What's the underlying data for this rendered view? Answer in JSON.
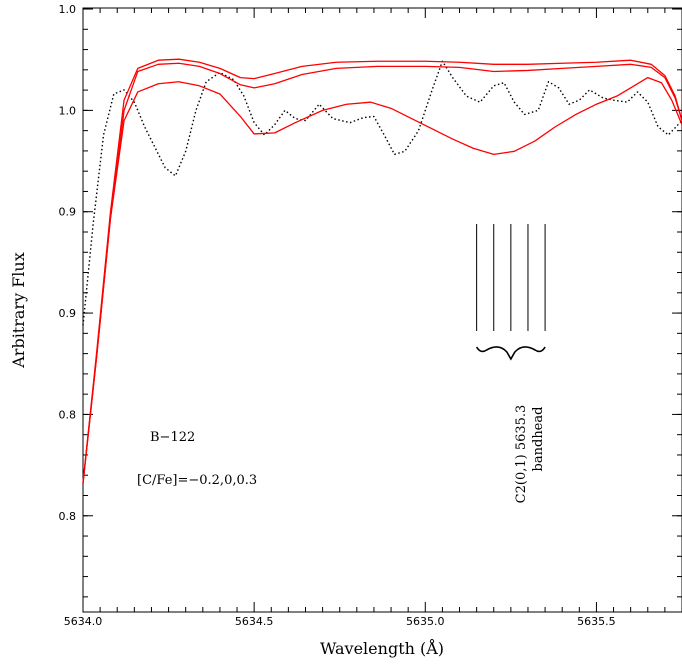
{
  "chart_data": {
    "type": "line",
    "title": "",
    "xlabel": "Wavelength (Å)",
    "ylabel": "Arbitrary Flux",
    "xlim": [
      5634.0,
      5635.75
    ],
    "ylim": [
      0.745,
      1.04
    ],
    "x_ticks": [
      {
        "value": 5634.0,
        "label": "5634.0"
      },
      {
        "value": 5634.5,
        "label": "5634.5"
      },
      {
        "value": 5635.0,
        "label": "5635.0"
      },
      {
        "value": 5635.5,
        "label": "5635.5"
      }
    ],
    "y_ticks": [
      {
        "value": 1.0395,
        "label": "1.0"
      },
      {
        "value": 0.99,
        "label": "1.0"
      },
      {
        "value": 0.9405,
        "label": "0.9"
      },
      {
        "value": 0.891,
        "label": "0.9"
      },
      {
        "value": 0.8415,
        "label": "0.8"
      },
      {
        "value": 0.792,
        "label": "0.8"
      }
    ],
    "grid": false,
    "series": [
      {
        "style": "dotted",
        "color": "#000000",
        "points": [
          [
            5634.0,
            0.885
          ],
          [
            5634.03,
            0.935
          ],
          [
            5634.06,
            0.978
          ],
          [
            5634.09,
            0.998
          ],
          [
            5634.12,
            1.0
          ],
          [
            5634.15,
            0.994
          ],
          [
            5634.18,
            0.982
          ],
          [
            5634.21,
            0.972
          ],
          [
            5634.24,
            0.962
          ],
          [
            5634.27,
            0.958
          ],
          [
            5634.3,
            0.97
          ],
          [
            5634.33,
            0.99
          ],
          [
            5634.36,
            1.004
          ],
          [
            5634.4,
            1.0085
          ],
          [
            5634.44,
            1.005
          ],
          [
            5634.47,
            0.997
          ],
          [
            5634.5,
            0.984
          ],
          [
            5634.53,
            0.978
          ],
          [
            5634.56,
            0.983
          ],
          [
            5634.59,
            0.99
          ],
          [
            5634.62,
            0.986
          ],
          [
            5634.65,
            0.985
          ],
          [
            5634.69,
            0.993
          ],
          [
            5634.73,
            0.986
          ],
          [
            5634.78,
            0.984
          ],
          [
            5634.82,
            0.9865
          ],
          [
            5634.85,
            0.987
          ],
          [
            5634.88,
            0.978
          ],
          [
            5634.91,
            0.9685
          ],
          [
            5634.94,
            0.97
          ],
          [
            5634.98,
            0.98
          ],
          [
            5635.02,
            1.0
          ],
          [
            5635.05,
            1.014
          ],
          [
            5635.08,
            1.006
          ],
          [
            5635.12,
            0.997
          ],
          [
            5635.16,
            0.994
          ],
          [
            5635.2,
            1.002
          ],
          [
            5635.23,
            1.0035
          ],
          [
            5635.26,
            0.994
          ],
          [
            5635.29,
            0.988
          ],
          [
            5635.33,
            0.99
          ],
          [
            5635.36,
            1.004
          ],
          [
            5635.39,
            1.001
          ],
          [
            5635.42,
            0.993
          ],
          [
            5635.45,
            0.995
          ],
          [
            5635.48,
            1.0
          ],
          [
            5635.52,
            0.996
          ],
          [
            5635.55,
            0.995
          ],
          [
            5635.59,
            0.994
          ],
          [
            5635.62,
            0.999
          ],
          [
            5635.65,
            0.994
          ],
          [
            5635.68,
            0.982
          ],
          [
            5635.71,
            0.978
          ],
          [
            5635.75,
            0.985
          ]
        ]
      },
      {
        "style": "solid",
        "color": "#ff0000",
        "points": [
          [
            5634.0,
            0.808
          ],
          [
            5634.04,
            0.87
          ],
          [
            5634.08,
            0.937
          ],
          [
            5634.12,
            0.985
          ],
          [
            5634.16,
            0.999
          ],
          [
            5634.22,
            1.003
          ],
          [
            5634.28,
            1.004
          ],
          [
            5634.34,
            1.002
          ],
          [
            5634.4,
            0.998
          ],
          [
            5634.46,
            0.987
          ],
          [
            5634.5,
            0.9785
          ],
          [
            5634.56,
            0.979
          ],
          [
            5634.62,
            0.984
          ],
          [
            5634.7,
            0.99
          ],
          [
            5634.77,
            0.993
          ],
          [
            5634.84,
            0.994
          ],
          [
            5634.9,
            0.991
          ],
          [
            5634.96,
            0.986
          ],
          [
            5635.02,
            0.981
          ],
          [
            5635.08,
            0.976
          ],
          [
            5635.14,
            0.9715
          ],
          [
            5635.2,
            0.9685
          ],
          [
            5635.26,
            0.97
          ],
          [
            5635.32,
            0.975
          ],
          [
            5635.38,
            0.982
          ],
          [
            5635.44,
            0.988
          ],
          [
            5635.5,
            0.993
          ],
          [
            5635.56,
            0.997
          ],
          [
            5635.61,
            1.002
          ],
          [
            5635.65,
            1.006
          ],
          [
            5635.69,
            1.0035
          ],
          [
            5635.72,
            0.995
          ],
          [
            5635.75,
            0.983
          ]
        ]
      },
      {
        "style": "solid",
        "color": "#ff0000",
        "points": [
          [
            5634.0,
            0.808
          ],
          [
            5634.04,
            0.87
          ],
          [
            5634.08,
            0.937
          ],
          [
            5634.12,
            0.99
          ],
          [
            5634.16,
            1.009
          ],
          [
            5634.22,
            1.0125
          ],
          [
            5634.28,
            1.013
          ],
          [
            5634.34,
            1.0115
          ],
          [
            5634.4,
            1.008
          ],
          [
            5634.46,
            1.0025
          ],
          [
            5634.5,
            1.001
          ],
          [
            5634.56,
            1.003
          ],
          [
            5634.64,
            1.0075
          ],
          [
            5634.74,
            1.0105
          ],
          [
            5634.86,
            1.0115
          ],
          [
            5635.0,
            1.0115
          ],
          [
            5635.1,
            1.011
          ],
          [
            5635.2,
            1.009
          ],
          [
            5635.3,
            1.0095
          ],
          [
            5635.4,
            1.0105
          ],
          [
            5635.5,
            1.0115
          ],
          [
            5635.6,
            1.0125
          ],
          [
            5635.66,
            1.011
          ],
          [
            5635.7,
            1.006
          ],
          [
            5635.73,
            0.996
          ],
          [
            5635.75,
            0.985
          ]
        ]
      },
      {
        "style": "solid",
        "color": "#ff0000",
        "points": [
          [
            5634.0,
            0.808
          ],
          [
            5634.04,
            0.872
          ],
          [
            5634.08,
            0.94
          ],
          [
            5634.12,
            0.995
          ],
          [
            5634.16,
            1.0105
          ],
          [
            5634.22,
            1.0145
          ],
          [
            5634.28,
            1.015
          ],
          [
            5634.34,
            1.0135
          ],
          [
            5634.4,
            1.0105
          ],
          [
            5634.46,
            1.006
          ],
          [
            5634.5,
            1.0055
          ],
          [
            5634.56,
            1.008
          ],
          [
            5634.64,
            1.0115
          ],
          [
            5634.74,
            1.0135
          ],
          [
            5634.86,
            1.014
          ],
          [
            5635.0,
            1.014
          ],
          [
            5635.1,
            1.0135
          ],
          [
            5635.2,
            1.0125
          ],
          [
            5635.3,
            1.0125
          ],
          [
            5635.4,
            1.013
          ],
          [
            5635.5,
            1.0135
          ],
          [
            5635.6,
            1.0145
          ],
          [
            5635.66,
            1.0125
          ],
          [
            5635.7,
            1.007
          ],
          [
            5635.73,
            0.997
          ],
          [
            5635.75,
            0.985
          ]
        ]
      }
    ],
    "annotations": {
      "object_label": "B−122",
      "abundance_label": "[C/Fe]=−0.2,0,0.3",
      "band_label_line1": "C2(0,1) 5635.3",
      "band_label_line2": "bandhead",
      "band_lines_x": [
        5635.15,
        5635.2,
        5635.25,
        5635.3,
        5635.35
      ]
    }
  }
}
